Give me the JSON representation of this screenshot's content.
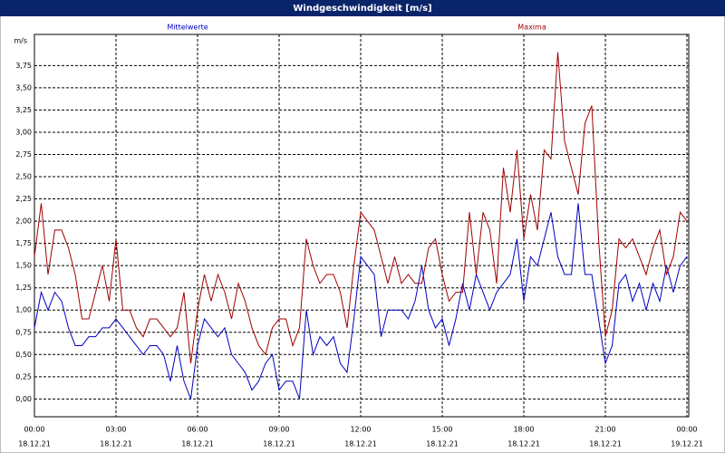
{
  "chart_data": {
    "type": "line",
    "title": "Windgeschwindigkeit [m/s]",
    "ylabel": "m/s",
    "x": [
      0,
      15,
      30,
      45,
      60,
      75,
      90,
      105,
      120,
      135,
      150,
      165,
      180,
      195,
      210,
      225,
      240,
      255,
      270,
      285,
      300,
      315,
      330,
      345,
      360,
      375,
      390,
      405,
      420,
      435,
      450,
      465,
      480,
      495,
      510,
      525,
      540,
      555,
      570,
      585,
      600,
      615,
      630,
      645,
      660,
      675,
      690,
      705,
      720,
      735,
      750,
      765,
      780,
      795,
      810,
      825,
      840,
      855,
      870,
      885,
      900,
      915,
      930,
      945,
      960,
      975,
      990,
      1005,
      1020,
      1035,
      1050,
      1065,
      1080,
      1095,
      1110,
      1125,
      1140,
      1155,
      1170,
      1185,
      1200,
      1215,
      1230,
      1245,
      1260,
      1275,
      1290,
      1305,
      1320,
      1335,
      1350,
      1365,
      1380,
      1395,
      1410,
      1425,
      1440
    ],
    "series": [
      {
        "name": "Mittelwerte",
        "color": "#0000c0",
        "values": [
          0.8,
          1.2,
          1.0,
          1.2,
          1.1,
          0.8,
          0.6,
          0.6,
          0.7,
          0.7,
          0.8,
          0.8,
          0.9,
          0.8,
          0.7,
          0.6,
          0.5,
          0.6,
          0.6,
          0.5,
          0.2,
          0.6,
          0.2,
          0.0,
          0.6,
          0.9,
          0.8,
          0.7,
          0.8,
          0.5,
          0.4,
          0.3,
          0.1,
          0.2,
          0.4,
          0.5,
          0.1,
          0.2,
          0.2,
          0.0,
          1.0,
          0.5,
          0.7,
          0.6,
          0.7,
          0.4,
          0.3,
          0.9,
          1.6,
          1.5,
          1.4,
          0.7,
          1.0,
          1.0,
          1.0,
          0.9,
          1.1,
          1.5,
          1.0,
          0.8,
          0.9,
          0.6,
          0.9,
          1.3,
          1.0,
          1.4,
          1.2,
          1.0,
          1.2,
          1.3,
          1.4,
          1.8,
          1.1,
          1.6,
          1.5,
          1.8,
          2.1,
          1.6,
          1.4,
          1.4,
          2.2,
          1.4,
          1.4,
          0.9,
          0.4,
          0.6,
          1.3,
          1.4,
          1.1,
          1.3,
          1.0,
          1.3,
          1.1,
          1.5,
          1.2,
          1.5,
          1.6
        ]
      },
      {
        "name": "Maxima",
        "color": "#a00000",
        "values": [
          1.6,
          2.2,
          1.4,
          1.9,
          1.9,
          1.7,
          1.4,
          0.9,
          0.9,
          1.2,
          1.5,
          1.1,
          1.8,
          1.0,
          1.0,
          0.8,
          0.7,
          0.9,
          0.9,
          0.8,
          0.7,
          0.8,
          1.2,
          0.4,
          1.0,
          1.4,
          1.1,
          1.4,
          1.2,
          0.9,
          1.3,
          1.1,
          0.8,
          0.6,
          0.5,
          0.8,
          0.9,
          0.9,
          0.6,
          0.8,
          1.8,
          1.5,
          1.3,
          1.4,
          1.4,
          1.2,
          0.8,
          1.5,
          2.1,
          2.0,
          1.9,
          1.6,
          1.3,
          1.6,
          1.3,
          1.4,
          1.3,
          1.3,
          1.7,
          1.8,
          1.4,
          1.1,
          1.2,
          1.2,
          2.1,
          1.4,
          2.1,
          1.9,
          1.3,
          2.6,
          2.1,
          2.8,
          1.8,
          2.3,
          1.9,
          2.8,
          2.7,
          3.9,
          2.9,
          2.6,
          2.3,
          3.1,
          3.3,
          1.8,
          0.7,
          1.0,
          1.8,
          1.7,
          1.8,
          1.6,
          1.4,
          1.7,
          1.9,
          1.4,
          1.6,
          2.1,
          2.0
        ]
      }
    ],
    "xlim": [
      0,
      1440
    ],
    "xticks": [
      {
        "value": 0,
        "label": "00:00"
      },
      {
        "value": 180,
        "label": "03:00"
      },
      {
        "value": 360,
        "label": "06:00"
      },
      {
        "value": 540,
        "label": "09:00"
      },
      {
        "value": 720,
        "label": "12:00"
      },
      {
        "value": 900,
        "label": "15:00"
      },
      {
        "value": 1080,
        "label": "18:00"
      },
      {
        "value": 1260,
        "label": "21:00"
      },
      {
        "value": 1440,
        "label": "00:00"
      }
    ],
    "xtick_dates": [
      "18.12.21",
      "18.12.21",
      "18.12.21",
      "18.12.21",
      "18.12.21",
      "18.12.21",
      "18.12.21",
      "18.12.21",
      "19.12.21"
    ],
    "ylim": [
      -0.2,
      4.1
    ],
    "yticks": [
      {
        "value": 0,
        "label": "0,00"
      },
      {
        "value": 0.25,
        "label": "0,25"
      },
      {
        "value": 0.5,
        "label": "0,50"
      },
      {
        "value": 0.75,
        "label": "0,75"
      },
      {
        "value": 1,
        "label": "1,00"
      },
      {
        "value": 1.25,
        "label": "1,25"
      },
      {
        "value": 1.5,
        "label": "1,50"
      },
      {
        "value": 1.75,
        "label": "1,75"
      },
      {
        "value": 2,
        "label": "2,00"
      },
      {
        "value": 2.25,
        "label": "2,25"
      },
      {
        "value": 2.5,
        "label": "2,50"
      },
      {
        "value": 2.75,
        "label": "2,75"
      },
      {
        "value": 3,
        "label": "3,00"
      },
      {
        "value": 3.25,
        "label": "3,25"
      },
      {
        "value": 3.5,
        "label": "3,50"
      },
      {
        "value": 3.75,
        "label": "3,75"
      }
    ],
    "grid": true
  }
}
